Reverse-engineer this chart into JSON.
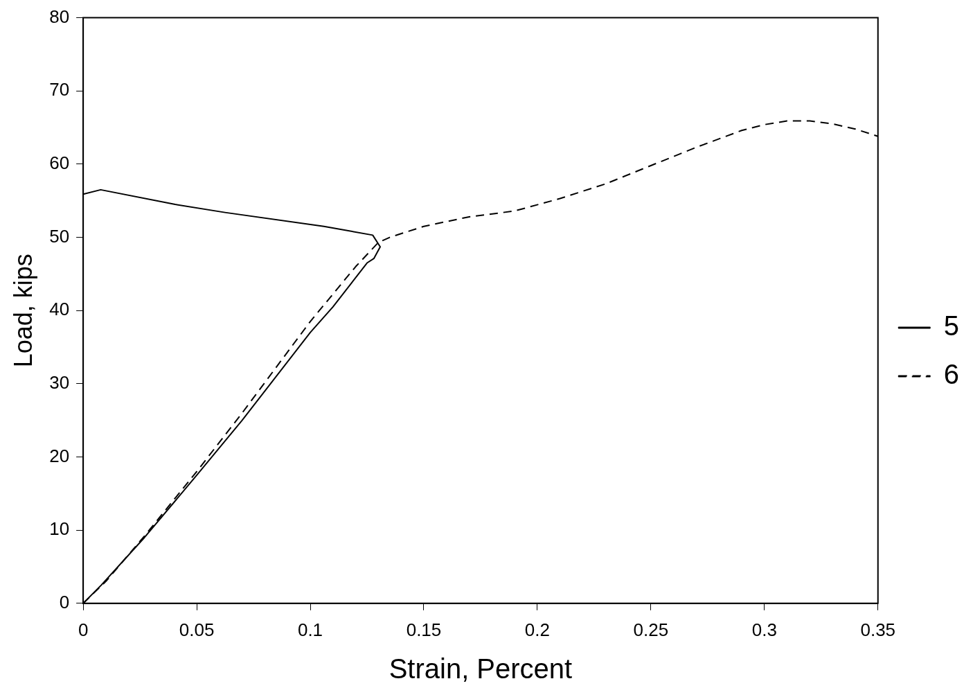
{
  "chart_data": {
    "type": "line",
    "xlabel": "Strain, Percent",
    "ylabel": "Load, kips",
    "xlim": [
      0,
      0.35
    ],
    "xticks": [
      0,
      0.05,
      0.1,
      0.15,
      0.2,
      0.25,
      0.3,
      0.35
    ],
    "ylim": [
      0,
      80
    ],
    "yticks": [
      0,
      10,
      20,
      30,
      40,
      50,
      60,
      70,
      80
    ],
    "grid": false,
    "legend": "right",
    "marker": "none",
    "series": [
      {
        "name": "5",
        "color": "#000000",
        "line_style": "solid",
        "x": [
          0,
          0.008,
          0.027,
          0.05,
          0.07,
          0.1,
          0.11,
          0.125,
          0.128,
          0.1308,
          0.1275,
          0.106,
          0.0624,
          0.0405,
          0.0077,
          0
        ],
        "values": [
          0,
          2.5,
          9,
          17.5,
          25,
          37,
          40.5,
          46.5,
          47.1,
          48.7,
          50.3,
          51.5,
          53.4,
          54.5,
          56.5,
          55.9
        ]
      },
      {
        "name": "6",
        "color": "#000000",
        "line_style": "dashed",
        "x": [
          0,
          0.01,
          0.027,
          0.05,
          0.07,
          0.1,
          0.12,
          0.13,
          0.135,
          0.15,
          0.17,
          0.19,
          0.21,
          0.23,
          0.25,
          0.27,
          0.29,
          0.3,
          0.31,
          0.32,
          0.33,
          0.34,
          0.35
        ],
        "values": [
          0,
          3,
          9.2,
          18,
          26,
          38.5,
          46,
          49.3,
          50,
          51.5,
          52.8,
          53.6,
          55.3,
          57.3,
          59.8,
          62.3,
          64.6,
          65.4,
          65.9,
          65.9,
          65.5,
          64.8,
          63.8
        ]
      }
    ]
  }
}
